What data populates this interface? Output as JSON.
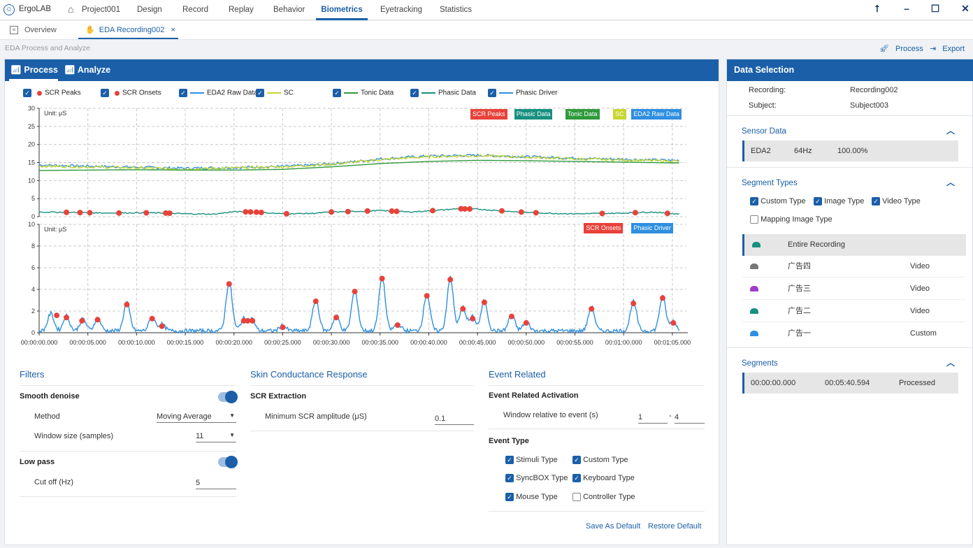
{
  "app": {
    "name": "ErgoLAB",
    "project": "Project001",
    "tabs": [
      "Design",
      "Record",
      "Replay",
      "Behavior",
      "Biometrics",
      "Eyetracking",
      "Statistics"
    ]
  },
  "window": {
    "minimize": "–",
    "maximize": "☐",
    "close": "✕",
    "upload": "⭡"
  },
  "subtabs": {
    "overview": "Overview",
    "recording": "EDA Recording002",
    "close": "×"
  },
  "breadcrumb": "EDA Process and Analyze",
  "actions": {
    "process": "Process",
    "export": "Export"
  },
  "left_panel": {
    "tab_process": "Process",
    "tab_analyze": "Analyze"
  },
  "legend": [
    {
      "label": "SCR Peaks",
      "checked": true,
      "marker": "dot",
      "color": "#e8423a"
    },
    {
      "label": "SCR Onsets",
      "checked": true,
      "marker": "dot",
      "color": "#e8423a"
    },
    {
      "label": "EDA2 Raw Data",
      "checked": true,
      "marker": "line",
      "color": "#2f8fe0"
    },
    {
      "label": "SC",
      "checked": true,
      "marker": "line",
      "color": "#c8d630"
    },
    {
      "label": "Tonic Data",
      "checked": true,
      "marker": "line",
      "color": "#2e9a3c"
    },
    {
      "label": "Phasic Data",
      "checked": true,
      "marker": "line",
      "color": "#17907f"
    },
    {
      "label": "Phasic Driver",
      "checked": true,
      "marker": "line",
      "color": "#2f8fe0"
    }
  ],
  "chart_data": [
    {
      "type": "line",
      "unit_label": "Unit: μS",
      "ylim": [
        0,
        30
      ],
      "y_ticks": [
        "0",
        "5",
        "10",
        "15",
        "20",
        "25",
        "30"
      ],
      "grid": true,
      "tags": [
        {
          "label": "SCR Peaks",
          "color": "#e8423a"
        },
        {
          "label": "Phasic Data",
          "color": "#17907f"
        },
        {
          "label": "Tonic Data",
          "color": "#2e9a3c"
        },
        {
          "label": "SC",
          "color": "#c8d630"
        },
        {
          "label": "EDA2 Raw Data",
          "color": "#2f8fe0"
        }
      ],
      "series": [
        {
          "name": "EDA2 Raw Data",
          "color": "#2f8fe0",
          "x": [
            0,
            5,
            10,
            15,
            20,
            25,
            30,
            35,
            40,
            45,
            50,
            55,
            60,
            65
          ],
          "y": [
            14.3,
            14.0,
            13.7,
            13.4,
            13.6,
            13.9,
            14.6,
            16.0,
            16.8,
            17.0,
            16.6,
            16.2,
            15.9,
            15.6
          ]
        },
        {
          "name": "SC",
          "color": "#c8d630",
          "x": [
            0,
            5,
            10,
            15,
            20,
            25,
            30,
            35,
            40,
            45,
            50,
            55,
            60,
            65
          ],
          "y": [
            14.0,
            13.8,
            13.5,
            13.2,
            13.5,
            13.8,
            14.5,
            15.8,
            16.6,
            16.9,
            16.5,
            16.0,
            15.7,
            15.4
          ]
        },
        {
          "name": "Tonic Data",
          "color": "#2e9a3c",
          "x": [
            0,
            5,
            10,
            15,
            20,
            25,
            30,
            35,
            40,
            45,
            50,
            55,
            60,
            65
          ],
          "y": [
            12.8,
            12.9,
            13.0,
            12.9,
            12.9,
            13.1,
            13.8,
            14.7,
            15.3,
            15.6,
            15.5,
            15.3,
            15.1,
            14.9
          ]
        },
        {
          "name": "Phasic Data",
          "color": "#17907f",
          "x": [
            0,
            3,
            5,
            8,
            10,
            13,
            15,
            18,
            20,
            22,
            25,
            28,
            30,
            33,
            35,
            38,
            40,
            43,
            45,
            48,
            50,
            53,
            55,
            58,
            60,
            63,
            65
          ],
          "y": [
            1.3,
            1.2,
            1.1,
            1.0,
            1.1,
            1.0,
            0.8,
            0.7,
            1.4,
            1.3,
            0.8,
            0.9,
            1.3,
            1.5,
            1.7,
            1.3,
            1.6,
            2.2,
            2.1,
            1.5,
            1.2,
            0.9,
            0.8,
            0.9,
            1.0,
            1.3,
            0.8
          ]
        }
      ],
      "peaks_x": [
        2.8,
        4.2,
        5.2,
        8.2,
        11.0,
        13.0,
        13.4,
        21.2,
        21.7,
        22.3,
        22.8,
        25.4,
        30.0,
        31.7,
        33.7,
        36.2,
        36.7,
        40.4,
        43.3,
        43.7,
        44.2,
        47.5,
        49.5,
        51.0,
        57.8,
        61.2,
        64.5
      ]
    },
    {
      "type": "line",
      "unit_label": "Unit: μS",
      "ylim": [
        0,
        10
      ],
      "y_ticks": [
        "0",
        "2",
        "4",
        "6",
        "8",
        "10"
      ],
      "x_ticks": [
        "00:00:00.000",
        "00:00:05.000",
        "00:00:10.000",
        "00:00:15.000",
        "00:00:20.000",
        "00:00:25.000",
        "00:00:30.000",
        "00:00:35.000",
        "00:00:40.000",
        "00:00:45.000",
        "00:00:50.000",
        "00:00:55.000",
        "00:01:00.000",
        "00:01:05.000"
      ],
      "xlim": [
        0,
        66.3
      ],
      "grid": true,
      "tags": [
        {
          "label": "SCR Onsets",
          "color": "#e8423a"
        },
        {
          "label": "Phasic Driver",
          "color": "#2f8fe0"
        }
      ],
      "series": [
        {
          "name": "Phasic Driver",
          "color": "#2f8fe0",
          "peaks": [
            [
              1.2,
              1.6
            ],
            [
              2.8,
              1.4
            ],
            [
              4.5,
              1.1
            ],
            [
              6.0,
              1.2
            ],
            [
              9.0,
              2.6
            ],
            [
              11.6,
              1.3
            ],
            [
              12.6,
              0.6
            ],
            [
              19.5,
              4.5
            ],
            [
              21.0,
              1.1
            ],
            [
              21.8,
              1.1
            ],
            [
              25.0,
              0.5
            ],
            [
              28.4,
              2.9
            ],
            [
              30.5,
              1.4
            ],
            [
              32.4,
              3.8
            ],
            [
              35.2,
              5.0
            ],
            [
              36.8,
              0.7
            ],
            [
              39.8,
              3.4
            ],
            [
              42.2,
              4.9
            ],
            [
              43.5,
              2.2
            ],
            [
              44.5,
              1.3
            ],
            [
              45.7,
              2.8
            ],
            [
              48.5,
              1.5
            ],
            [
              50.0,
              0.9
            ],
            [
              56.7,
              2.2
            ],
            [
              61.0,
              2.7
            ],
            [
              64.0,
              3.2
            ],
            [
              65.1,
              0.9
            ]
          ]
        }
      ],
      "onsets": [
        [
          1.8,
          1.6
        ],
        [
          2.8,
          1.4
        ],
        [
          4.4,
          1.1
        ],
        [
          6.0,
          1.2
        ],
        [
          9.0,
          2.6
        ],
        [
          11.6,
          1.3
        ],
        [
          12.6,
          0.6
        ],
        [
          19.5,
          4.5
        ],
        [
          21.0,
          1.1
        ],
        [
          21.4,
          1.1
        ],
        [
          21.9,
          1.1
        ],
        [
          25.0,
          0.5
        ],
        [
          28.4,
          2.9
        ],
        [
          30.5,
          1.4
        ],
        [
          32.4,
          3.8
        ],
        [
          35.2,
          5.0
        ],
        [
          36.8,
          0.7
        ],
        [
          39.8,
          3.4
        ],
        [
          42.2,
          4.9
        ],
        [
          43.5,
          2.2
        ],
        [
          44.5,
          1.3
        ],
        [
          45.7,
          2.8
        ],
        [
          48.5,
          1.5
        ],
        [
          50.0,
          0.9
        ],
        [
          56.7,
          2.2
        ],
        [
          61.0,
          2.7
        ],
        [
          64.0,
          3.2
        ],
        [
          65.1,
          0.9
        ]
      ]
    }
  ],
  "filters": {
    "title": "Filters",
    "smooth_denoise": "Smooth denoise",
    "method_label": "Method",
    "method_value": "Moving Average",
    "window_label": "Window size (samples)",
    "window_value": "11",
    "low_pass": "Low pass",
    "cutoff_label": "Cut off (Hz)",
    "cutoff_value": "5"
  },
  "scr": {
    "title": "Skin Conductance Response",
    "extraction": "SCR Extraction",
    "min_amp_label": "Minimum SCR amplitude (μS)",
    "min_amp_value": "0.1"
  },
  "event": {
    "title": "Event Related",
    "activation": "Event Related Activation",
    "window_label": "Window relative to event (s)",
    "window_from": "1",
    "window_sep": "-",
    "window_to": "4",
    "type_title": "Event Type",
    "types": [
      {
        "label": "Stimuli Type",
        "checked": true
      },
      {
        "label": "Custom Type",
        "checked": true
      },
      {
        "label": "SyncBOX Type",
        "checked": true
      },
      {
        "label": "Keyboard Type",
        "checked": true
      },
      {
        "label": "Mouse Type",
        "checked": true
      },
      {
        "label": "Controller Type",
        "checked": false
      }
    ],
    "save_default": "Save As Default",
    "restore_default": "Restore Default"
  },
  "data_selection": {
    "title": "Data Selection",
    "recording_label": "Recording:",
    "recording_value": "Recording002",
    "subject_label": "Subject:",
    "subject_value": "Subject003",
    "sensor_title": "Sensor Data",
    "sensor": {
      "name": "EDA2",
      "rate": "64Hz",
      "percent": "100.00%"
    },
    "segment_types_title": "Segment Types",
    "segment_types": [
      {
        "label": "Custom Type",
        "checked": true
      },
      {
        "label": "Image Type",
        "checked": true
      },
      {
        "label": "Video Type",
        "checked": true
      },
      {
        "label": "Mapping Image Type",
        "checked": false
      }
    ],
    "segment_list": [
      {
        "name": "Entire Recording",
        "type": "",
        "icon_color": "#17907f",
        "selected": true
      },
      {
        "name": "广告四",
        "type": "Video",
        "icon_color": "#777777",
        "selected": false
      },
      {
        "name": "广告三",
        "type": "Video",
        "icon_color": "#a03cc8",
        "selected": false
      },
      {
        "name": "广告二",
        "type": "Video",
        "icon_color": "#17907f",
        "selected": false
      },
      {
        "name": "广告一",
        "type": "Custom",
        "icon_color": "#2f8fe0",
        "selected": false
      }
    ],
    "segments_title": "Segments",
    "segment": {
      "start": "00:00:00.000",
      "end": "00:05:40.594",
      "status": "Processed"
    }
  }
}
